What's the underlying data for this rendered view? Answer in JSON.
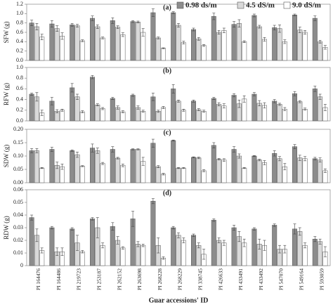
{
  "chart_data": [
    {
      "type": "bar",
      "label": "(a)",
      "ylabel": "SFW (g)",
      "ylim": [
        0,
        1.2
      ],
      "yticks": [
        {
          "value": 0,
          "label": "0.0"
        },
        0.2,
        0.4,
        0.6,
        0.8,
        {
          "value": 1,
          "label": "1.0"
        },
        1.2
      ],
      "series": [
        {
          "name": "0.98 ds/m",
          "color": "#8c8c8c",
          "values": [
            0.8,
            0.78,
            0.76,
            0.9,
            0.85,
            0.83,
            1.02,
            1.02,
            0.66,
            0.94,
            0.77,
            0.96,
            0.7,
            0.97,
            0.9
          ],
          "errors": [
            0.06,
            0.07,
            0.03,
            0.05,
            0.06,
            0.02,
            0.08,
            0.02,
            0.03,
            0.07,
            0.06,
            0.03,
            0.05,
            0.02,
            0.05
          ]
        },
        {
          "name": "4.5 dS/m",
          "color": "#d9d9d9",
          "values": [
            0.72,
            0.68,
            0.74,
            0.72,
            0.71,
            0.82,
            0.48,
            0.75,
            0.46,
            0.6,
            0.79,
            0.72,
            0.68,
            0.65,
            0.4
          ],
          "errors": [
            0.07,
            0.06,
            0.03,
            0.04,
            0.03,
            0.02,
            0.02,
            0.04,
            0.03,
            0.04,
            0.08,
            0.03,
            0.08,
            0.06,
            0.03
          ]
        },
        {
          "name": "9.0 dS/m",
          "color": "#ffffff",
          "values": [
            0.5,
            0.52,
            0.42,
            0.48,
            0.55,
            0.6,
            0.26,
            0.38,
            0.32,
            0.64,
            0.4,
            0.45,
            0.4,
            0.6,
            0.28
          ],
          "errors": [
            0.06,
            0.07,
            0.02,
            0.02,
            0.04,
            0.08,
            0.01,
            0.03,
            0.02,
            0.05,
            0.02,
            0.04,
            0.04,
            0.04,
            0.04
          ]
        }
      ]
    },
    {
      "type": "bar",
      "label": "(b)",
      "ylabel": "RFW (g)",
      "ylim": [
        0,
        1
      ],
      "yticks": [
        {
          "value": 0,
          "label": "0.0"
        },
        0.2,
        0.4,
        0.6,
        0.8,
        {
          "value": 1,
          "label": "1.0"
        }
      ],
      "series": [
        {
          "color": "#8c8c8c",
          "values": [
            0.5,
            0.37,
            0.62,
            0.82,
            0.42,
            0.48,
            0.45,
            0.6,
            0.37,
            0.42,
            0.48,
            0.5,
            0.37,
            0.51,
            0.6
          ],
          "errors": [
            0.02,
            0.07,
            0.08,
            0.03,
            0.02,
            0.02,
            0.07,
            0.08,
            0.02,
            0.02,
            0.03,
            0.03,
            0.03,
            0.04,
            0.05
          ]
        },
        {
          "color": "#d9d9d9",
          "values": [
            0.45,
            0.18,
            0.45,
            0.3,
            0.25,
            0.25,
            0.18,
            0.37,
            0.21,
            0.31,
            0.32,
            0.33,
            0.31,
            0.36,
            0.45
          ],
          "errors": [
            0.08,
            0.03,
            0.05,
            0.02,
            0.03,
            0.03,
            0.02,
            0.02,
            0.02,
            0.03,
            0.07,
            0.05,
            0.02,
            0.02,
            0.05
          ]
        },
        {
          "color": "#ffffff",
          "values": [
            0.15,
            0.2,
            0.17,
            0.23,
            0.17,
            0.18,
            0.25,
            0.2,
            0.18,
            0.28,
            0.41,
            0.29,
            0.22,
            0.22,
            0.25
          ],
          "errors": [
            0.05,
            0.02,
            0.02,
            0.02,
            0.02,
            0.02,
            0.02,
            0.02,
            0.02,
            0.04,
            0.06,
            0.05,
            0.03,
            0.02,
            0.06
          ]
        }
      ]
    },
    {
      "type": "bar",
      "label": "(c)",
      "ylabel": "SDW (g)",
      "ylim": [
        0,
        0.2
      ],
      "yticks": [
        {
          "value": 0,
          "label": "0.00"
        },
        0.05,
        {
          "value": 0.1,
          "label": "0.10"
        },
        0.15,
        {
          "value": 0.2,
          "label": "0.20"
        }
      ],
      "series": [
        {
          "color": "#8c8c8c",
          "values": [
            0.12,
            0.125,
            0.12,
            0.13,
            0.125,
            0.125,
            0.148,
            0.158,
            0.095,
            0.14,
            0.125,
            0.1,
            0.11,
            0.135,
            0.09
          ],
          "errors": [
            0.008,
            0.008,
            0.003,
            0.015,
            0.01,
            0.002,
            0.015,
            0.002,
            0.002,
            0.01,
            0.01,
            0.002,
            0.01,
            0.008,
            0.005
          ]
        },
        {
          "color": "#d9d9d9",
          "values": [
            0.12,
            0.065,
            0.105,
            0.12,
            0.092,
            0.125,
            0.06,
            0.055,
            0.093,
            0.088,
            0.1,
            0.085,
            0.09,
            0.093,
            0.085
          ],
          "errors": [
            0.008,
            0.012,
            0.01,
            0.01,
            0.003,
            0.002,
            0.004,
            0.002,
            0.003,
            0.003,
            0.008,
            0.003,
            0.008,
            0.01,
            0.008
          ]
        },
        {
          "color": "#ffffff",
          "values": [
            0.055,
            0.06,
            0.062,
            0.072,
            0.065,
            0.08,
            0.032,
            0.055,
            0.045,
            0.085,
            0.055,
            0.075,
            0.06,
            0.09,
            0.045
          ],
          "errors": [
            0.002,
            0.01,
            0.002,
            0.004,
            0.005,
            0.015,
            0.003,
            0.002,
            0.004,
            0.005,
            0.002,
            0.008,
            0.012,
            0.008,
            0.007
          ]
        }
      ]
    },
    {
      "type": "bar",
      "label": "(d)",
      "ylabel": "RDW (g)",
      "xlabel": "Guar accessions' ID",
      "categories": [
        "PI 164476",
        "PI 164486",
        "PI 219723",
        "PI 253187",
        "PI 262152",
        "PI 263698",
        "PI 268228",
        "PI 268229",
        "PI 338745",
        "PI 426633",
        "PI 433491",
        "PI 433492",
        "PI 547070",
        "PI 549164",
        "PI 593059"
      ],
      "ylim": [
        0,
        0.06
      ],
      "yticks": [
        0,
        0.01,
        0.02,
        0.03,
        0.04,
        0.05,
        0.06
      ],
      "series": [
        {
          "color": "#8c8c8c",
          "values": [
            0.038,
            0.03,
            0.029,
            0.037,
            0.031,
            0.037,
            0.051,
            0.03,
            0.024,
            0.036,
            0.03,
            0.029,
            0.032,
            0.029,
            0.021
          ],
          "errors": [
            0.002,
            0.001,
            0.001,
            0.001,
            0.003,
            0.006,
            0.002,
            0.001,
            0.001,
            0.001,
            0.002,
            0.001,
            0.001,
            0.004,
            0.002
          ]
        },
        {
          "color": "#d9d9d9",
          "values": [
            0.024,
            0.011,
            0.018,
            0.03,
            0.02,
            0.017,
            0.016,
            0.024,
            0.016,
            0.02,
            0.023,
            0.017,
            0.013,
            0.027,
            0.019
          ],
          "errors": [
            0.005,
            0.003,
            0.006,
            0.008,
            0.003,
            0.002,
            0.006,
            0.002,
            0.002,
            0.002,
            0.004,
            0.004,
            0.003,
            0.003,
            0.002
          ]
        },
        {
          "color": "#ffffff",
          "values": [
            0.012,
            0.011,
            0.011,
            0.016,
            0.014,
            0.016,
            0.006,
            0.02,
            0.009,
            0.018,
            0.018,
            0.016,
            0.013,
            0.016,
            0.011
          ],
          "errors": [
            0.002,
            0.003,
            0.001,
            0.002,
            0.001,
            0.001,
            0.001,
            0.002,
            0.004,
            0.002,
            0.003,
            0.004,
            0.003,
            0.002,
            0.004
          ]
        }
      ]
    }
  ]
}
